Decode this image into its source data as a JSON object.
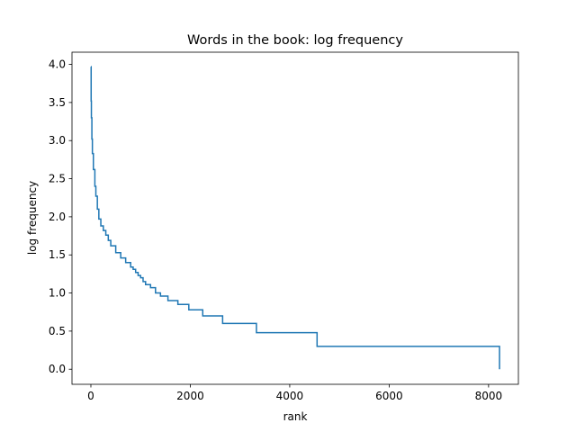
{
  "chart_data": {
    "type": "line",
    "title": "Words in the book: log frequency",
    "xlabel": "rank",
    "ylabel": "log frequency",
    "xlim": [
      -380,
      8600
    ],
    "ylim": [
      -0.198,
      4.16
    ],
    "xticks": [
      0,
      2000,
      4000,
      6000,
      8000
    ],
    "yticks": [
      0.0,
      0.5,
      1.0,
      1.5,
      2.0,
      2.5,
      3.0,
      3.5,
      4.0
    ],
    "grid": false,
    "series": [
      {
        "color": "#1f77b4",
        "step": true,
        "x": [
          0,
          5,
          10,
          20,
          30,
          50,
          80,
          100,
          130,
          160,
          200,
          250,
          300,
          350,
          400,
          500,
          600,
          700,
          800,
          850,
          900,
          950,
          1000,
          1050,
          1100,
          1200,
          1300,
          1400,
          1550,
          1750,
          1970,
          2250,
          2650,
          3330,
          4550,
          8220
        ],
        "y": [
          3.97,
          3.52,
          3.3,
          3.02,
          2.83,
          2.62,
          2.4,
          2.27,
          2.1,
          1.97,
          1.88,
          1.82,
          1.76,
          1.69,
          1.62,
          1.53,
          1.46,
          1.4,
          1.34,
          1.31,
          1.27,
          1.23,
          1.2,
          1.15,
          1.11,
          1.07,
          1.0,
          0.96,
          0.9,
          0.85,
          0.78,
          0.7,
          0.6,
          0.48,
          0.3,
          0.0
        ]
      }
    ]
  }
}
